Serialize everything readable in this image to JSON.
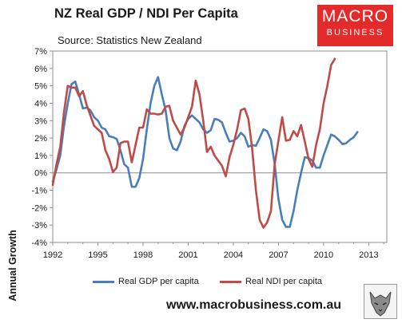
{
  "title": "NZ Real GDP / NDI Per Capita",
  "subtitle": "Source: Statistics New Zealand",
  "logo": {
    "line1": "MACRO",
    "line2": "BUSINESS"
  },
  "footer": "www.macrobusiness.com.au",
  "colors": {
    "gdp": "#4a7ebb",
    "ndi": "#be4b48",
    "logo_bg": "#e32b2b"
  },
  "chart_data": {
    "type": "line",
    "title": "NZ Real GDP / NDI Per Capita",
    "xlabel": "",
    "ylabel": "Annual Growth",
    "xlim": [
      1992,
      2014.2
    ],
    "ylim": [
      -4,
      7
    ],
    "grid": "none",
    "legend_position": "bottom",
    "x_ticks": [
      "1992",
      "1995",
      "1998",
      "2001",
      "2004",
      "2007",
      "2010",
      "2013"
    ],
    "x_tick_values": [
      1992,
      1995,
      1998,
      2001,
      2004,
      2007,
      2010,
      2013
    ],
    "y_ticks": [
      "-4%",
      "-3%",
      "-2%",
      "-1%",
      "0%",
      "1%",
      "2%",
      "3%",
      "4%",
      "5%",
      "6%",
      "7%"
    ],
    "y_tick_values": [
      -4,
      -3,
      -2,
      -1,
      0,
      1,
      2,
      3,
      4,
      5,
      6,
      7
    ],
    "series": [
      {
        "name": "Real GDP per capita",
        "points": [
          [
            1992.0,
            -0.5
          ],
          [
            1992.25,
            0.2
          ],
          [
            1992.5,
            1.0
          ],
          [
            1992.75,
            2.7
          ],
          [
            1993.0,
            4.0
          ],
          [
            1993.25,
            5.1
          ],
          [
            1993.5,
            5.25
          ],
          [
            1993.75,
            4.5
          ],
          [
            1994.0,
            3.7
          ],
          [
            1994.25,
            3.75
          ],
          [
            1994.5,
            3.6
          ],
          [
            1994.75,
            3.2
          ],
          [
            1995.0,
            3.0
          ],
          [
            1995.25,
            2.6
          ],
          [
            1995.5,
            2.5
          ],
          [
            1995.75,
            2.1
          ],
          [
            1996.0,
            2.05
          ],
          [
            1996.25,
            1.95
          ],
          [
            1996.5,
            1.3
          ],
          [
            1996.75,
            0.5
          ],
          [
            1997.0,
            0.3
          ],
          [
            1997.25,
            -0.8
          ],
          [
            1997.5,
            -0.8
          ],
          [
            1997.75,
            -0.3
          ],
          [
            1998.0,
            0.8
          ],
          [
            1998.25,
            2.5
          ],
          [
            1998.5,
            4.0
          ],
          [
            1998.75,
            5.0
          ],
          [
            1999.0,
            5.5
          ],
          [
            1999.25,
            4.5
          ],
          [
            1999.5,
            3.6
          ],
          [
            1999.75,
            2.0
          ],
          [
            2000.0,
            1.4
          ],
          [
            2000.25,
            1.3
          ],
          [
            2000.5,
            1.8
          ],
          [
            2000.75,
            2.7
          ],
          [
            2001.0,
            3.1
          ],
          [
            2001.25,
            3.3
          ],
          [
            2001.5,
            3.1
          ],
          [
            2001.75,
            2.9
          ],
          [
            2002.0,
            2.5
          ],
          [
            2002.25,
            2.3
          ],
          [
            2002.5,
            2.45
          ],
          [
            2002.75,
            3.1
          ],
          [
            2003.0,
            3.05
          ],
          [
            2003.25,
            2.9
          ],
          [
            2003.5,
            2.3
          ],
          [
            2003.75,
            1.8
          ],
          [
            2004.0,
            1.85
          ],
          [
            2004.25,
            2.0
          ],
          [
            2004.5,
            2.3
          ],
          [
            2004.75,
            2.1
          ],
          [
            2005.0,
            1.5
          ],
          [
            2005.25,
            1.6
          ],
          [
            2005.5,
            1.55
          ],
          [
            2005.75,
            2.0
          ],
          [
            2006.0,
            2.5
          ],
          [
            2006.25,
            2.4
          ],
          [
            2006.5,
            1.9
          ],
          [
            2006.75,
            0.5
          ],
          [
            2007.0,
            -1.5
          ],
          [
            2007.25,
            -2.7
          ],
          [
            2007.5,
            -3.1
          ],
          [
            2007.75,
            -3.1
          ],
          [
            2008.0,
            -2.2
          ],
          [
            2008.25,
            -1.0
          ],
          [
            2008.5,
            0.0
          ],
          [
            2008.75,
            0.9
          ],
          [
            2009.0,
            0.85
          ],
          [
            2009.25,
            0.7
          ],
          [
            2009.5,
            0.3
          ],
          [
            2009.75,
            0.3
          ],
          [
            2010.0,
            1.0
          ],
          [
            2010.25,
            1.6
          ],
          [
            2010.5,
            2.2
          ],
          [
            2010.75,
            2.1
          ],
          [
            2011.0,
            1.9
          ],
          [
            2011.25,
            1.65
          ],
          [
            2011.5,
            1.7
          ],
          [
            2011.75,
            1.9
          ],
          [
            2012.0,
            2.05
          ],
          [
            2012.25,
            2.35
          ]
        ]
      },
      {
        "name": "Real NDI per capita",
        "points": [
          [
            1992.0,
            -0.7
          ],
          [
            1992.25,
            0.5
          ],
          [
            1992.5,
            1.5
          ],
          [
            1992.75,
            3.5
          ],
          [
            1993.0,
            5.0
          ],
          [
            1993.25,
            4.9
          ],
          [
            1993.5,
            4.9
          ],
          [
            1993.75,
            4.4
          ],
          [
            1994.0,
            4.7
          ],
          [
            1994.25,
            3.9
          ],
          [
            1994.5,
            3.3
          ],
          [
            1994.75,
            2.7
          ],
          [
            1995.0,
            2.5
          ],
          [
            1995.25,
            2.3
          ],
          [
            1995.5,
            1.3
          ],
          [
            1995.75,
            0.8
          ],
          [
            1996.0,
            0.05
          ],
          [
            1996.25,
            0.3
          ],
          [
            1996.5,
            1.7
          ],
          [
            1996.75,
            1.8
          ],
          [
            1997.0,
            1.8
          ],
          [
            1997.25,
            0.6
          ],
          [
            1997.5,
            1.6
          ],
          [
            1997.75,
            2.6
          ],
          [
            1998.0,
            2.6
          ],
          [
            1998.25,
            3.65
          ],
          [
            1998.5,
            3.4
          ],
          [
            1998.75,
            3.4
          ],
          [
            1999.0,
            3.35
          ],
          [
            1999.25,
            3.4
          ],
          [
            1999.5,
            3.8
          ],
          [
            1999.75,
            3.85
          ],
          [
            2000.0,
            3.0
          ],
          [
            2000.25,
            2.6
          ],
          [
            2000.5,
            2.2
          ],
          [
            2000.75,
            2.6
          ],
          [
            2001.0,
            3.2
          ],
          [
            2001.25,
            3.8
          ],
          [
            2001.5,
            5.3
          ],
          [
            2001.75,
            4.5
          ],
          [
            2002.0,
            3.0
          ],
          [
            2002.25,
            1.2
          ],
          [
            2002.5,
            1.5
          ],
          [
            2002.75,
            1.0
          ],
          [
            2003.0,
            0.7
          ],
          [
            2003.25,
            0.4
          ],
          [
            2003.5,
            -0.2
          ],
          [
            2003.75,
            0.9
          ],
          [
            2004.0,
            1.6
          ],
          [
            2004.25,
            2.5
          ],
          [
            2004.5,
            3.6
          ],
          [
            2004.75,
            3.7
          ],
          [
            2005.0,
            3.1
          ],
          [
            2005.25,
            1.4
          ],
          [
            2005.5,
            -1.0
          ],
          [
            2005.75,
            -2.7
          ],
          [
            2006.0,
            -3.15
          ],
          [
            2006.25,
            -2.85
          ],
          [
            2006.5,
            -2.2
          ],
          [
            2006.75,
            0.5
          ],
          [
            2007.0,
            1.85
          ],
          [
            2007.25,
            3.2
          ],
          [
            2007.5,
            1.85
          ],
          [
            2007.75,
            1.9
          ],
          [
            2008.0,
            2.4
          ],
          [
            2008.25,
            2.1
          ],
          [
            2008.5,
            2.75
          ],
          [
            2008.75,
            1.8
          ],
          [
            2009.0,
            0.8
          ],
          [
            2009.25,
            0.35
          ],
          [
            2009.5,
            1.6
          ],
          [
            2009.75,
            2.5
          ],
          [
            2010.0,
            4.0
          ],
          [
            2010.25,
            5.0
          ],
          [
            2010.5,
            6.2
          ],
          [
            2010.75,
            6.55
          ]
        ]
      }
    ]
  }
}
